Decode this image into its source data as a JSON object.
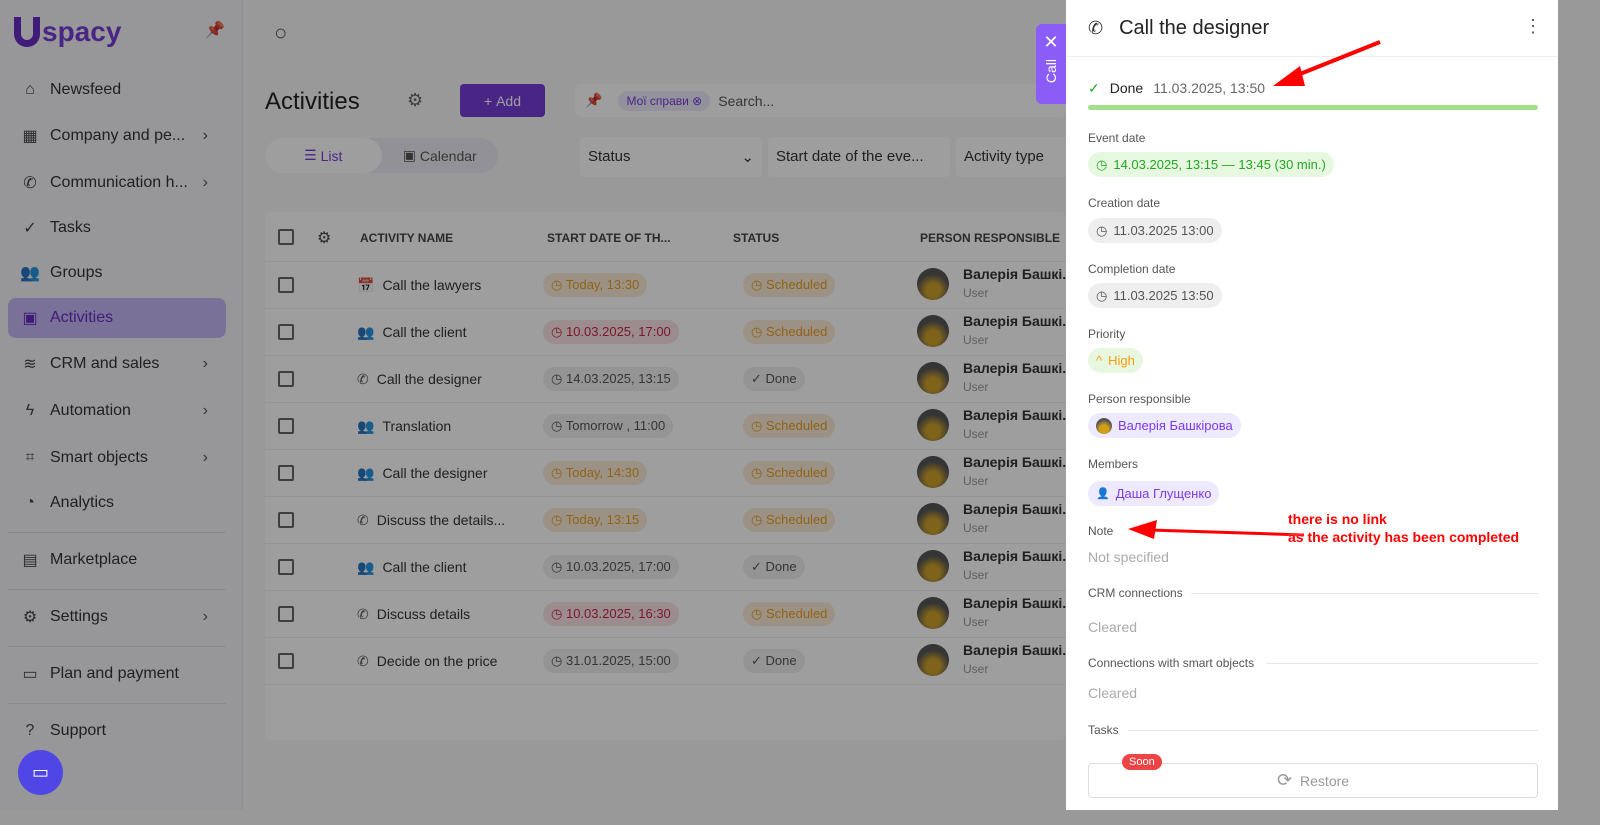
{
  "sidebar": {
    "logo": "spacy",
    "items": [
      {
        "label": "Newsfeed",
        "icon": "home-icon"
      },
      {
        "label": "Company and pe...",
        "icon": "building-icon"
      },
      {
        "label": "Communication h...",
        "icon": "chat-icon"
      },
      {
        "label": "Tasks",
        "icon": "check-circle-icon"
      },
      {
        "label": "Groups",
        "icon": "users-icon"
      },
      {
        "label": "Activities",
        "icon": "calendar-icon"
      },
      {
        "label": "CRM and sales",
        "icon": "database-icon"
      },
      {
        "label": "Automation",
        "icon": "bolt-icon"
      },
      {
        "label": "Smart objects",
        "icon": "scan-icon"
      },
      {
        "label": "Analytics",
        "icon": "chart-icon"
      },
      {
        "label": "Marketplace",
        "icon": "store-icon"
      },
      {
        "label": "Settings",
        "icon": "gear-icon"
      },
      {
        "label": "Plan and payment",
        "icon": "wallet-icon"
      },
      {
        "label": "Support",
        "icon": "help-icon"
      }
    ]
  },
  "main": {
    "title": "Activities",
    "add_label": "Add",
    "filter_chip": "Мої справи",
    "search_placeholder": "Search...",
    "views": [
      "List",
      "Calendar"
    ],
    "filters": [
      "Status",
      "Start date of the eve...",
      "Activity type"
    ],
    "columns": [
      "ACTIVITY NAME",
      "START DATE OF TH...",
      "STATUS",
      "PERSON RESPONSIBLE"
    ],
    "rows": [
      {
        "name": "Call the lawyers",
        "date": "Today, 13:30",
        "date_tone": "orange",
        "status": "Scheduled",
        "person": "Валерія Башкі...",
        "role": "User"
      },
      {
        "name": "Call the client",
        "date": "10.03.2025, 17:00",
        "date_tone": "red",
        "status": "Scheduled",
        "person": "Валерія Башкі...",
        "role": "User"
      },
      {
        "name": "Call the designer",
        "date": "14.03.2025, 13:15",
        "date_tone": "gray",
        "status": "Done",
        "person": "Валерія Башкі...",
        "role": "User"
      },
      {
        "name": "Translation",
        "date": "Tomorrow , 11:00",
        "date_tone": "gray",
        "status": "Scheduled",
        "person": "Валерія Башкі...",
        "role": "User"
      },
      {
        "name": "Call the designer",
        "date": "Today, 14:30",
        "date_tone": "orange",
        "status": "Scheduled",
        "person": "Валерія Башкі...",
        "role": "User"
      },
      {
        "name": "Discuss the details...",
        "date": "Today, 13:15",
        "date_tone": "orange",
        "status": "Scheduled",
        "person": "Валерія Башкі...",
        "role": "User"
      },
      {
        "name": "Call the client",
        "date": "10.03.2025, 17:00",
        "date_tone": "gray",
        "status": "Done",
        "person": "Валерія Башкі...",
        "role": "User"
      },
      {
        "name": "Discuss details",
        "date": "10.03.2025, 16:30",
        "date_tone": "red",
        "status": "Scheduled",
        "person": "Валерія Башкі...",
        "role": "User"
      },
      {
        "name": "Decide on the price",
        "date": "31.01.2025, 15:00",
        "date_tone": "gray",
        "status": "Done",
        "person": "Валерія Башкі...",
        "role": "User"
      }
    ]
  },
  "call_tab": {
    "label": "Call"
  },
  "panel": {
    "title": "Call the designer",
    "status": "Done",
    "status_time": "11.03.2025, 13:50",
    "progress": 100,
    "event_date_label": "Event date",
    "event_date": "14.03.2025, 13:15 — 13:45 (30 min.)",
    "creation_label": "Creation date",
    "creation": "11.03.2025 13:00",
    "completion_label": "Completion date",
    "completion": "11.03.2025 13:50",
    "priority_label": "Priority",
    "priority": "High",
    "responsible_label": "Person responsible",
    "responsible": "Валерія Башкірова",
    "members_label": "Members",
    "member": "Даша Глущенко",
    "note_label": "Note",
    "note": "Not specified",
    "crm_label": "CRM connections",
    "crm": "Cleared",
    "smart_label": "Connections with smart objects",
    "smart": "Cleared",
    "tasks_label": "Tasks",
    "soon": "Soon",
    "restore": "Restore"
  },
  "annotation": {
    "line1": "there is no link",
    "line2": "as the activity has been completed",
    "color": "#ff0000"
  }
}
